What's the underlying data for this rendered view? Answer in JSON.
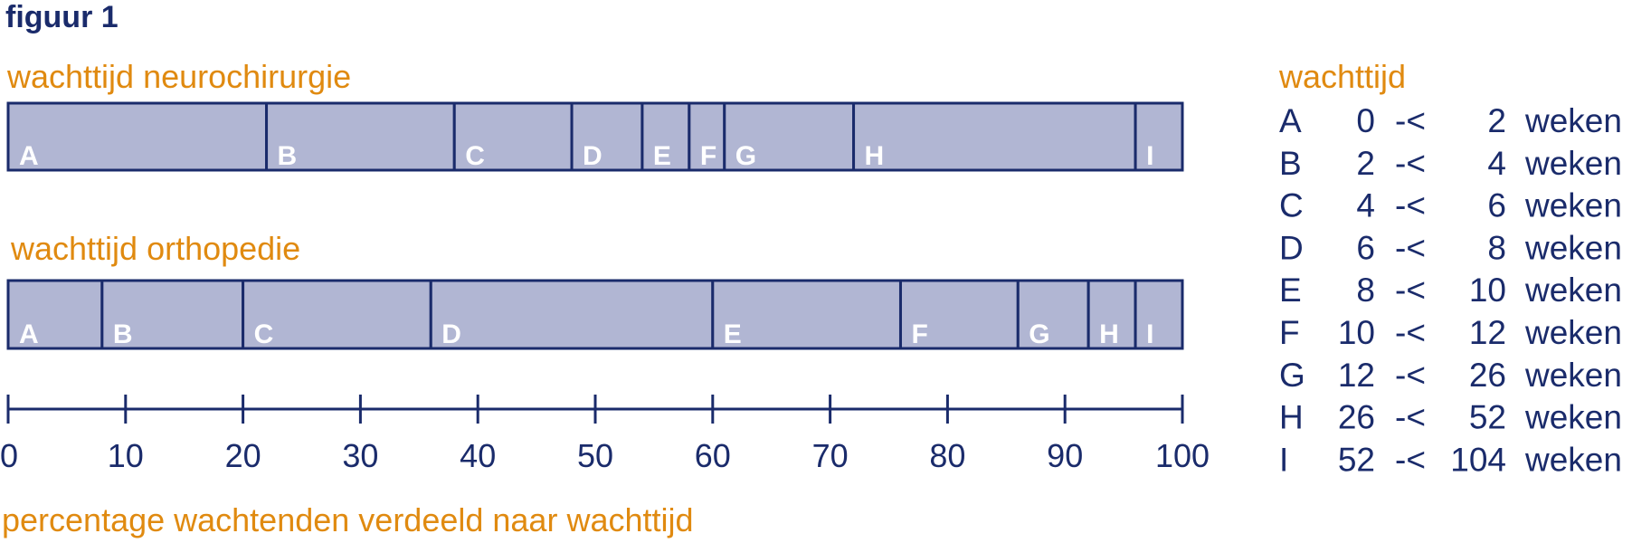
{
  "colors": {
    "navy": "#1a2b6b",
    "orange": "#e08a10",
    "bar_fill": "#b1b6d3",
    "bar_stroke": "#1a2b6b",
    "label": "#ffffff"
  },
  "chart_data": {
    "type": "bar",
    "orientation": "horizontal-stacked",
    "title": "figuur 1",
    "xlabel": "percentage wachtenden verdeeld naar wachttijd",
    "xlim": [
      0,
      100
    ],
    "xticks": [
      "0",
      "10",
      "20",
      "30",
      "40",
      "50",
      "60",
      "70",
      "80",
      "90",
      "100"
    ],
    "categories": [
      "A",
      "B",
      "C",
      "D",
      "E",
      "F",
      "G",
      "H",
      "I"
    ],
    "series": [
      {
        "name": "wachttijd neurochirurgie",
        "values": [
          22,
          16,
          10,
          6,
          4,
          3,
          11,
          24,
          4
        ]
      },
      {
        "name": "wachttijd orthopedie",
        "values": [
          8,
          12,
          16,
          24,
          16,
          10,
          6,
          4,
          4
        ]
      }
    ],
    "legend": {
      "title": "wachttijd",
      "rows": [
        {
          "letter": "A",
          "from": "0",
          "sep": "-<",
          "to": "2",
          "unit": "weken"
        },
        {
          "letter": "B",
          "from": "2",
          "sep": "-<",
          "to": "4",
          "unit": "weken"
        },
        {
          "letter": "C",
          "from": "4",
          "sep": "-<",
          "to": "6",
          "unit": "weken"
        },
        {
          "letter": "D",
          "from": "6",
          "sep": "-<",
          "to": "8",
          "unit": "weken"
        },
        {
          "letter": "E",
          "from": "8",
          "sep": "-<",
          "to": "10",
          "unit": "weken"
        },
        {
          "letter": "F",
          "from": "10",
          "sep": "-<",
          "to": "12",
          "unit": "weken"
        },
        {
          "letter": "G",
          "from": "12",
          "sep": "-<",
          "to": "26",
          "unit": "weken"
        },
        {
          "letter": "H",
          "from": "26",
          "sep": "-<",
          "to": "52",
          "unit": "weken"
        },
        {
          "letter": "I",
          "from": "52",
          "sep": "-<",
          "to": "104",
          "unit": "weken"
        }
      ]
    }
  }
}
